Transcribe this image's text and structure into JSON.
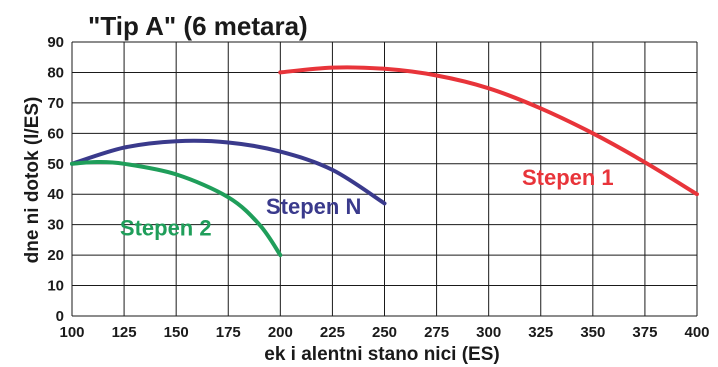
{
  "chart_data": {
    "type": "line",
    "title": "\"Tip A\" (6 metara)",
    "xlabel": "ek  i  alentni stano  nici (ES)",
    "ylabel": "dne  ni dotok (l/ES)",
    "xlim": [
      100,
      400
    ],
    "ylim": [
      0,
      90
    ],
    "xticks": [
      100,
      125,
      150,
      175,
      200,
      225,
      250,
      275,
      300,
      325,
      350,
      375,
      400
    ],
    "yticks": [
      0,
      10,
      20,
      30,
      40,
      50,
      60,
      70,
      80,
      90
    ],
    "grid": true,
    "series": [
      {
        "name": "Stepen 1",
        "color": "#e8343a",
        "points": [
          [
            200,
            80
          ],
          [
            225,
            81.6
          ],
          [
            250,
            81.2
          ],
          [
            275,
            79
          ],
          [
            300,
            74.8
          ],
          [
            325,
            68.2
          ],
          [
            350,
            60
          ],
          [
            375,
            50.5
          ],
          [
            400,
            40
          ]
        ]
      },
      {
        "name": "Stepen N",
        "color": "#3a3a8c",
        "points": [
          [
            100,
            50
          ],
          [
            125,
            55.3
          ],
          [
            150,
            57.4
          ],
          [
            175,
            57
          ],
          [
            200,
            54
          ],
          [
            225,
            48
          ],
          [
            250,
            37
          ]
        ]
      },
      {
        "name": "Stepen 2",
        "color": "#1f9e5a",
        "points": [
          [
            100,
            50
          ],
          [
            112,
            50.6
          ],
          [
            125,
            50
          ],
          [
            150,
            46.5
          ],
          [
            175,
            39
          ],
          [
            190,
            30
          ],
          [
            200,
            20
          ]
        ]
      }
    ]
  }
}
